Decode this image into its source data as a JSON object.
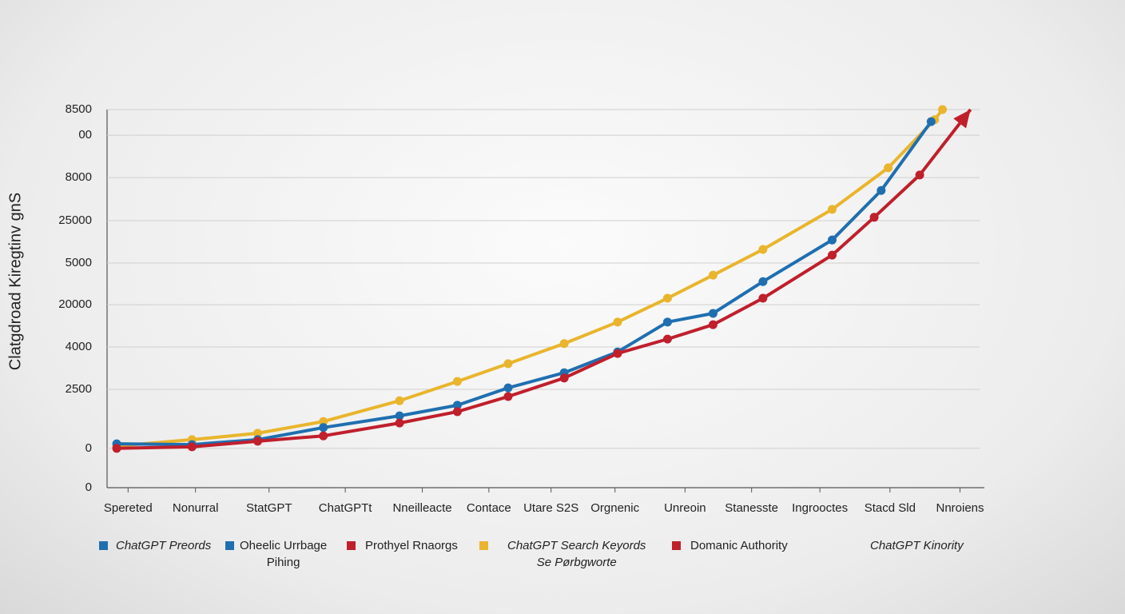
{
  "chart_data": {
    "type": "line",
    "y_label": "Clatgdroad Kiregtinv gnS",
    "xlim": [
      0,
      100
    ],
    "ylim": [
      0,
      100
    ],
    "grid": true,
    "yticks": [
      {
        "value": 100,
        "label": "8500"
      },
      {
        "value": 93.2,
        "label": "00"
      },
      {
        "value": 82,
        "label": "8000"
      },
      {
        "value": 70.6,
        "label": "25000"
      },
      {
        "value": 59.4,
        "label": "5000"
      },
      {
        "value": 48.4,
        "label": "20000"
      },
      {
        "value": 37.2,
        "label": "4000"
      },
      {
        "value": 26,
        "label": "2500"
      },
      {
        "value": 10.4,
        "label": "0"
      },
      0
    ],
    "xticks": [
      {
        "value": 2.4,
        "label": "Spereted"
      },
      {
        "value": 10.1,
        "label": "Nonurral"
      },
      {
        "value": 18.5,
        "label": "StatGPT"
      },
      {
        "value": 27.2,
        "label": "ChatGPTt"
      },
      {
        "value": 36,
        "label": "Nneilleacte"
      },
      {
        "value": 43.6,
        "label": "Contace"
      },
      {
        "value": 50.7,
        "label": "Utare S2S"
      },
      {
        "value": 58,
        "label": "Orgnenic"
      },
      {
        "value": 66,
        "label": "Unreoin"
      },
      {
        "value": 73.6,
        "label": "Stanesste"
      },
      {
        "value": 81.4,
        "label": "Ingrooctes"
      },
      {
        "value": 89.4,
        "label": "Stacd Sld"
      },
      {
        "value": 97.4,
        "label": "Nnroiens"
      }
    ],
    "series": [
      {
        "color": "#e9b52c",
        "markers": true,
        "x": [
          1.1,
          9.7,
          17.2,
          24.7,
          33.4,
          40,
          45.8,
          52.2,
          58.3,
          64,
          69.2,
          74.9,
          82.8,
          89.2,
          94.5,
          95.4
        ],
        "values": [
          11,
          12.7,
          14.4,
          17.5,
          23,
          28.1,
          32.8,
          38.1,
          43.8,
          50.1,
          56.2,
          63,
          73.6,
          84.6,
          97.3,
          100
        ]
      },
      {
        "color": "#1f6fb0",
        "markers": true,
        "x": [
          1.1,
          9.7,
          17.2,
          24.7,
          33.4,
          40,
          45.8,
          52.2,
          58.3,
          64,
          69.2,
          74.9,
          82.8,
          88.4,
          94.1
        ],
        "values": [
          11.6,
          11.4,
          12.7,
          15.9,
          19,
          21.8,
          26.4,
          30.4,
          35.9,
          43.8,
          46.1,
          54.5,
          65.5,
          78.6,
          96.8
        ]
      },
      {
        "color": "#c01f2c",
        "markers": true,
        "arrow": true,
        "x": [
          1.1,
          9.7,
          17.2,
          24.7,
          33.4,
          40,
          45.8,
          52.2,
          58.3,
          64,
          69.2,
          74.9,
          82.8,
          87.6,
          92.8,
          98.6
        ],
        "values": [
          10.4,
          10.8,
          12.3,
          13.7,
          17.1,
          20.1,
          24.1,
          29,
          35.5,
          39.3,
          43.1,
          50.1,
          61.5,
          71.5,
          82.7,
          100
        ]
      }
    ],
    "legend": [
      {
        "color": "#1f6fb0",
        "lines": [
          "ChatGPT Preords"
        ]
      },
      {
        "color": "#1f6fb0",
        "lines": [
          "Oheelic Urrbage",
          "Pihing"
        ]
      },
      {
        "color": "#c01f2c",
        "lines": [
          "Prothyel Rnaorgs"
        ]
      },
      {
        "color": "#e9b52c",
        "lines": [
          "ChatGPT Search Keyords",
          "Se Pørbgworte"
        ]
      },
      {
        "color": "#c01f2c",
        "lines": [
          "Domanic Authority"
        ]
      },
      {
        "lines": [
          "ChatGPT Kinority"
        ]
      }
    ]
  }
}
